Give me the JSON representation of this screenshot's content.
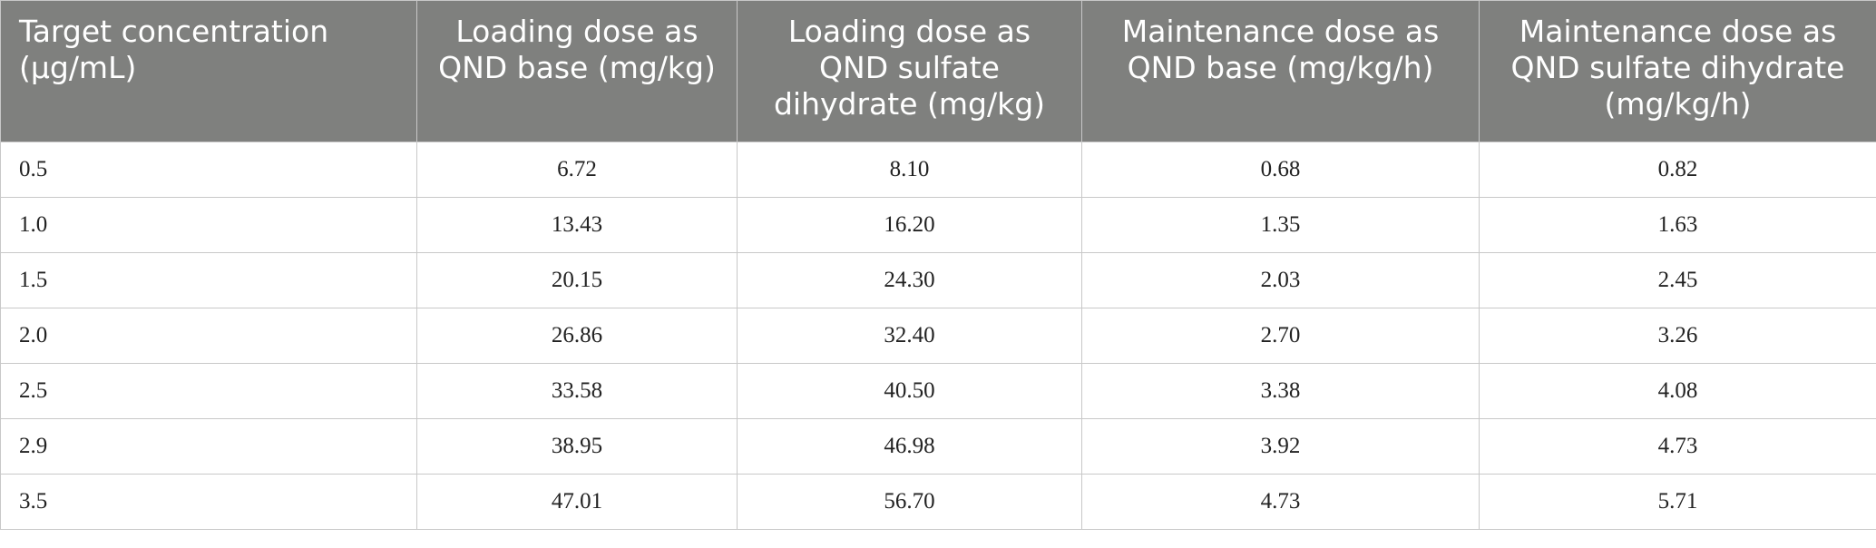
{
  "table": {
    "header": [
      "Target concentration (μg/mL)",
      "Loading dose as QND base (mg/kg)",
      "Loading dose as QND sulfate dihydrate (mg/kg)",
      "Maintenance dose as QND base (mg/kg/h)",
      "Maintenance dose as QND sulfate dihydrate (mg/kg/h)"
    ],
    "rows": [
      [
        "0.5",
        "6.72",
        "8.10",
        "0.68",
        "0.82"
      ],
      [
        "1.0",
        "13.43",
        "16.20",
        "1.35",
        "1.63"
      ],
      [
        "1.5",
        "20.15",
        "24.30",
        "2.03",
        "2.45"
      ],
      [
        "2.0",
        "26.86",
        "32.40",
        "2.70",
        "3.26"
      ],
      [
        "2.5",
        "33.58",
        "40.50",
        "3.38",
        "4.08"
      ],
      [
        "2.9",
        "38.95",
        "46.98",
        "3.92",
        "4.73"
      ],
      [
        "3.5",
        "47.01",
        "56.70",
        "4.73",
        "5.71"
      ]
    ]
  }
}
